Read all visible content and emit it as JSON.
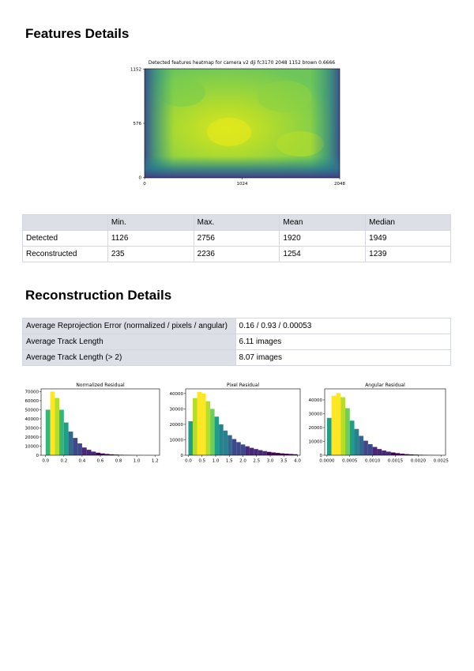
{
  "sections": {
    "features_title": "Features Details",
    "reconstruction_title": "Reconstruction Details"
  },
  "heatmap": {
    "title": "Detected features heatmap for camera v2 dji fc3170 2048 1152 brown 0.6666",
    "y_ticks": [
      "1152",
      "576",
      "0"
    ],
    "x_ticks": [
      "0",
      "1024",
      "2048"
    ],
    "colormap": "viridis"
  },
  "features_table": {
    "headers": [
      "",
      "Min.",
      "Max.",
      "Mean",
      "Median"
    ],
    "rows": [
      [
        "Detected",
        "1126",
        "2756",
        "1920",
        "1949"
      ],
      [
        "Reconstructed",
        "235",
        "2236",
        "1254",
        "1239"
      ]
    ]
  },
  "reconstruction_table": {
    "rows": [
      [
        "Average Reprojection Error (normalized / pixels / angular)",
        "0.16 / 0.93 / 0.00053"
      ],
      [
        "Average Track Length",
        "6.11 images"
      ],
      [
        "Average Track Length (> 2)",
        "8.07 images"
      ]
    ]
  },
  "chart_data": [
    {
      "type": "bar",
      "title": "Normalized Residual",
      "xlim": [
        -0.05,
        1.25
      ],
      "ylim": [
        0,
        73000
      ],
      "x_ticks": [
        "0.0",
        "0.2",
        "0.4",
        "0.6",
        "0.8",
        "1.0",
        "1.2"
      ],
      "y_ticks": [
        "0",
        "10000",
        "20000",
        "30000",
        "40000",
        "50000",
        "60000",
        "70000"
      ],
      "bin_start": 0.0,
      "bin_width": 0.05,
      "values": [
        50000,
        70000,
        63000,
        50000,
        36000,
        26000,
        19000,
        13000,
        8500,
        6000,
        4000,
        2800,
        2000,
        1400,
        1000,
        700,
        500,
        350,
        250,
        180,
        120,
        80,
        50,
        30
      ]
    },
    {
      "type": "bar",
      "title": "Pixel Residual",
      "xlim": [
        -0.1,
        4.1
      ],
      "ylim": [
        0,
        43000
      ],
      "x_ticks": [
        "0.0",
        "0.5",
        "1.0",
        "1.5",
        "2.0",
        "2.5",
        "3.0",
        "3.5",
        "4.0"
      ],
      "y_ticks": [
        "0",
        "10000",
        "20000",
        "30000",
        "40000"
      ],
      "bin_start": 0.0,
      "bin_width": 0.16,
      "values": [
        22000,
        37000,
        41000,
        40000,
        35000,
        30000,
        25000,
        20000,
        16000,
        13000,
        10500,
        8500,
        7000,
        5800,
        4800,
        4000,
        3300,
        2700,
        2200,
        1800,
        1500,
        1200,
        1000,
        800,
        650
      ]
    },
    {
      "type": "bar",
      "title": "Angular Residual",
      "xlim": [
        -5e-05,
        0.0026
      ],
      "ylim": [
        0,
        48000
      ],
      "x_ticks": [
        "0.0000",
        "0.0005",
        "0.0010",
        "0.0015",
        "0.0020",
        "0.0025"
      ],
      "y_ticks": [
        "0",
        "10000",
        "20000",
        "30000",
        "40000"
      ],
      "bin_start": 0.0,
      "bin_width": 0.0001,
      "values": [
        27000,
        43000,
        45000,
        42000,
        34000,
        25000,
        19000,
        14000,
        10500,
        8000,
        6000,
        4500,
        3400,
        2600,
        2000,
        1500,
        1100,
        800,
        600,
        450,
        330,
        240,
        170,
        120,
        80
      ]
    }
  ]
}
